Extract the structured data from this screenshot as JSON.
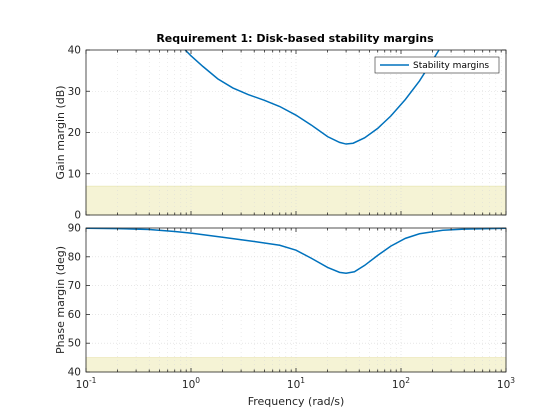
{
  "chart_data": {
    "type": "line",
    "title": "Requirement 1: Disk-based stability margins",
    "xlabel": "Frequency (rad/s)",
    "xscale": "log",
    "xlim": [
      0.1,
      1000
    ],
    "x_ticks": [
      {
        "base": "10",
        "exp": "-1"
      },
      {
        "base": "10",
        "exp": "0"
      },
      {
        "base": "10",
        "exp": "1"
      },
      {
        "base": "10",
        "exp": "2"
      },
      {
        "base": "10",
        "exp": "3"
      }
    ],
    "grid": true,
    "colors": {
      "line": "#0072bd",
      "forbidden": "#f5f3d5",
      "forbidden_edge": "#e6e2a8",
      "grid": "#d9d9d9"
    },
    "panels": [
      {
        "ylabel": "Gain margin (dB)",
        "ylim": [
          0,
          40
        ],
        "yticks": [
          "0",
          "10",
          "20",
          "30",
          "40"
        ],
        "forbidden_region": [
          0,
          7
        ],
        "legend": {
          "label": "Stability margins",
          "location": "top-right"
        },
        "series": [
          {
            "name": "Stability margins",
            "x": [
              0.88,
              1.0,
              1.3,
              1.8,
              2.5,
              3.5,
              5.0,
              7.0,
              10.0,
              14.0,
              20.0,
              26.0,
              30.0,
              35.0,
              45.0,
              60.0,
              80.0,
              110.0,
              150.0,
              200.0,
              230.0
            ],
            "y": [
              40.0,
              38.6,
              36.0,
              33.0,
              30.8,
              29.2,
              27.8,
              26.3,
              24.2,
              21.8,
              19.0,
              17.6,
              17.2,
              17.4,
              18.7,
              21.0,
              24.0,
              28.0,
              32.5,
              37.5,
              40.0
            ]
          }
        ]
      },
      {
        "ylabel": "Phase margin (deg)",
        "ylim": [
          40,
          90
        ],
        "yticks": [
          "40",
          "50",
          "60",
          "70",
          "80",
          "90"
        ],
        "forbidden_region": [
          40,
          45
        ],
        "series": [
          {
            "name": "Stability margins",
            "x": [
              0.1,
              0.2,
              0.4,
              0.7,
              1.0,
              2.0,
              4.0,
              7.0,
              10.0,
              14.0,
              20.0,
              26.0,
              30.0,
              36.0,
              45.0,
              60.0,
              80.0,
              110.0,
              150.0,
              250.0,
              400.0,
              700.0,
              1000.0
            ],
            "y": [
              89.9,
              89.8,
              89.5,
              88.8,
              88.2,
              86.8,
              85.3,
              84.0,
              82.3,
              79.5,
              76.3,
              74.6,
              74.3,
              74.8,
              77.0,
              80.5,
              83.7,
              86.4,
              88.0,
              89.2,
              89.6,
              89.8,
              89.9
            ]
          }
        ]
      }
    ]
  }
}
